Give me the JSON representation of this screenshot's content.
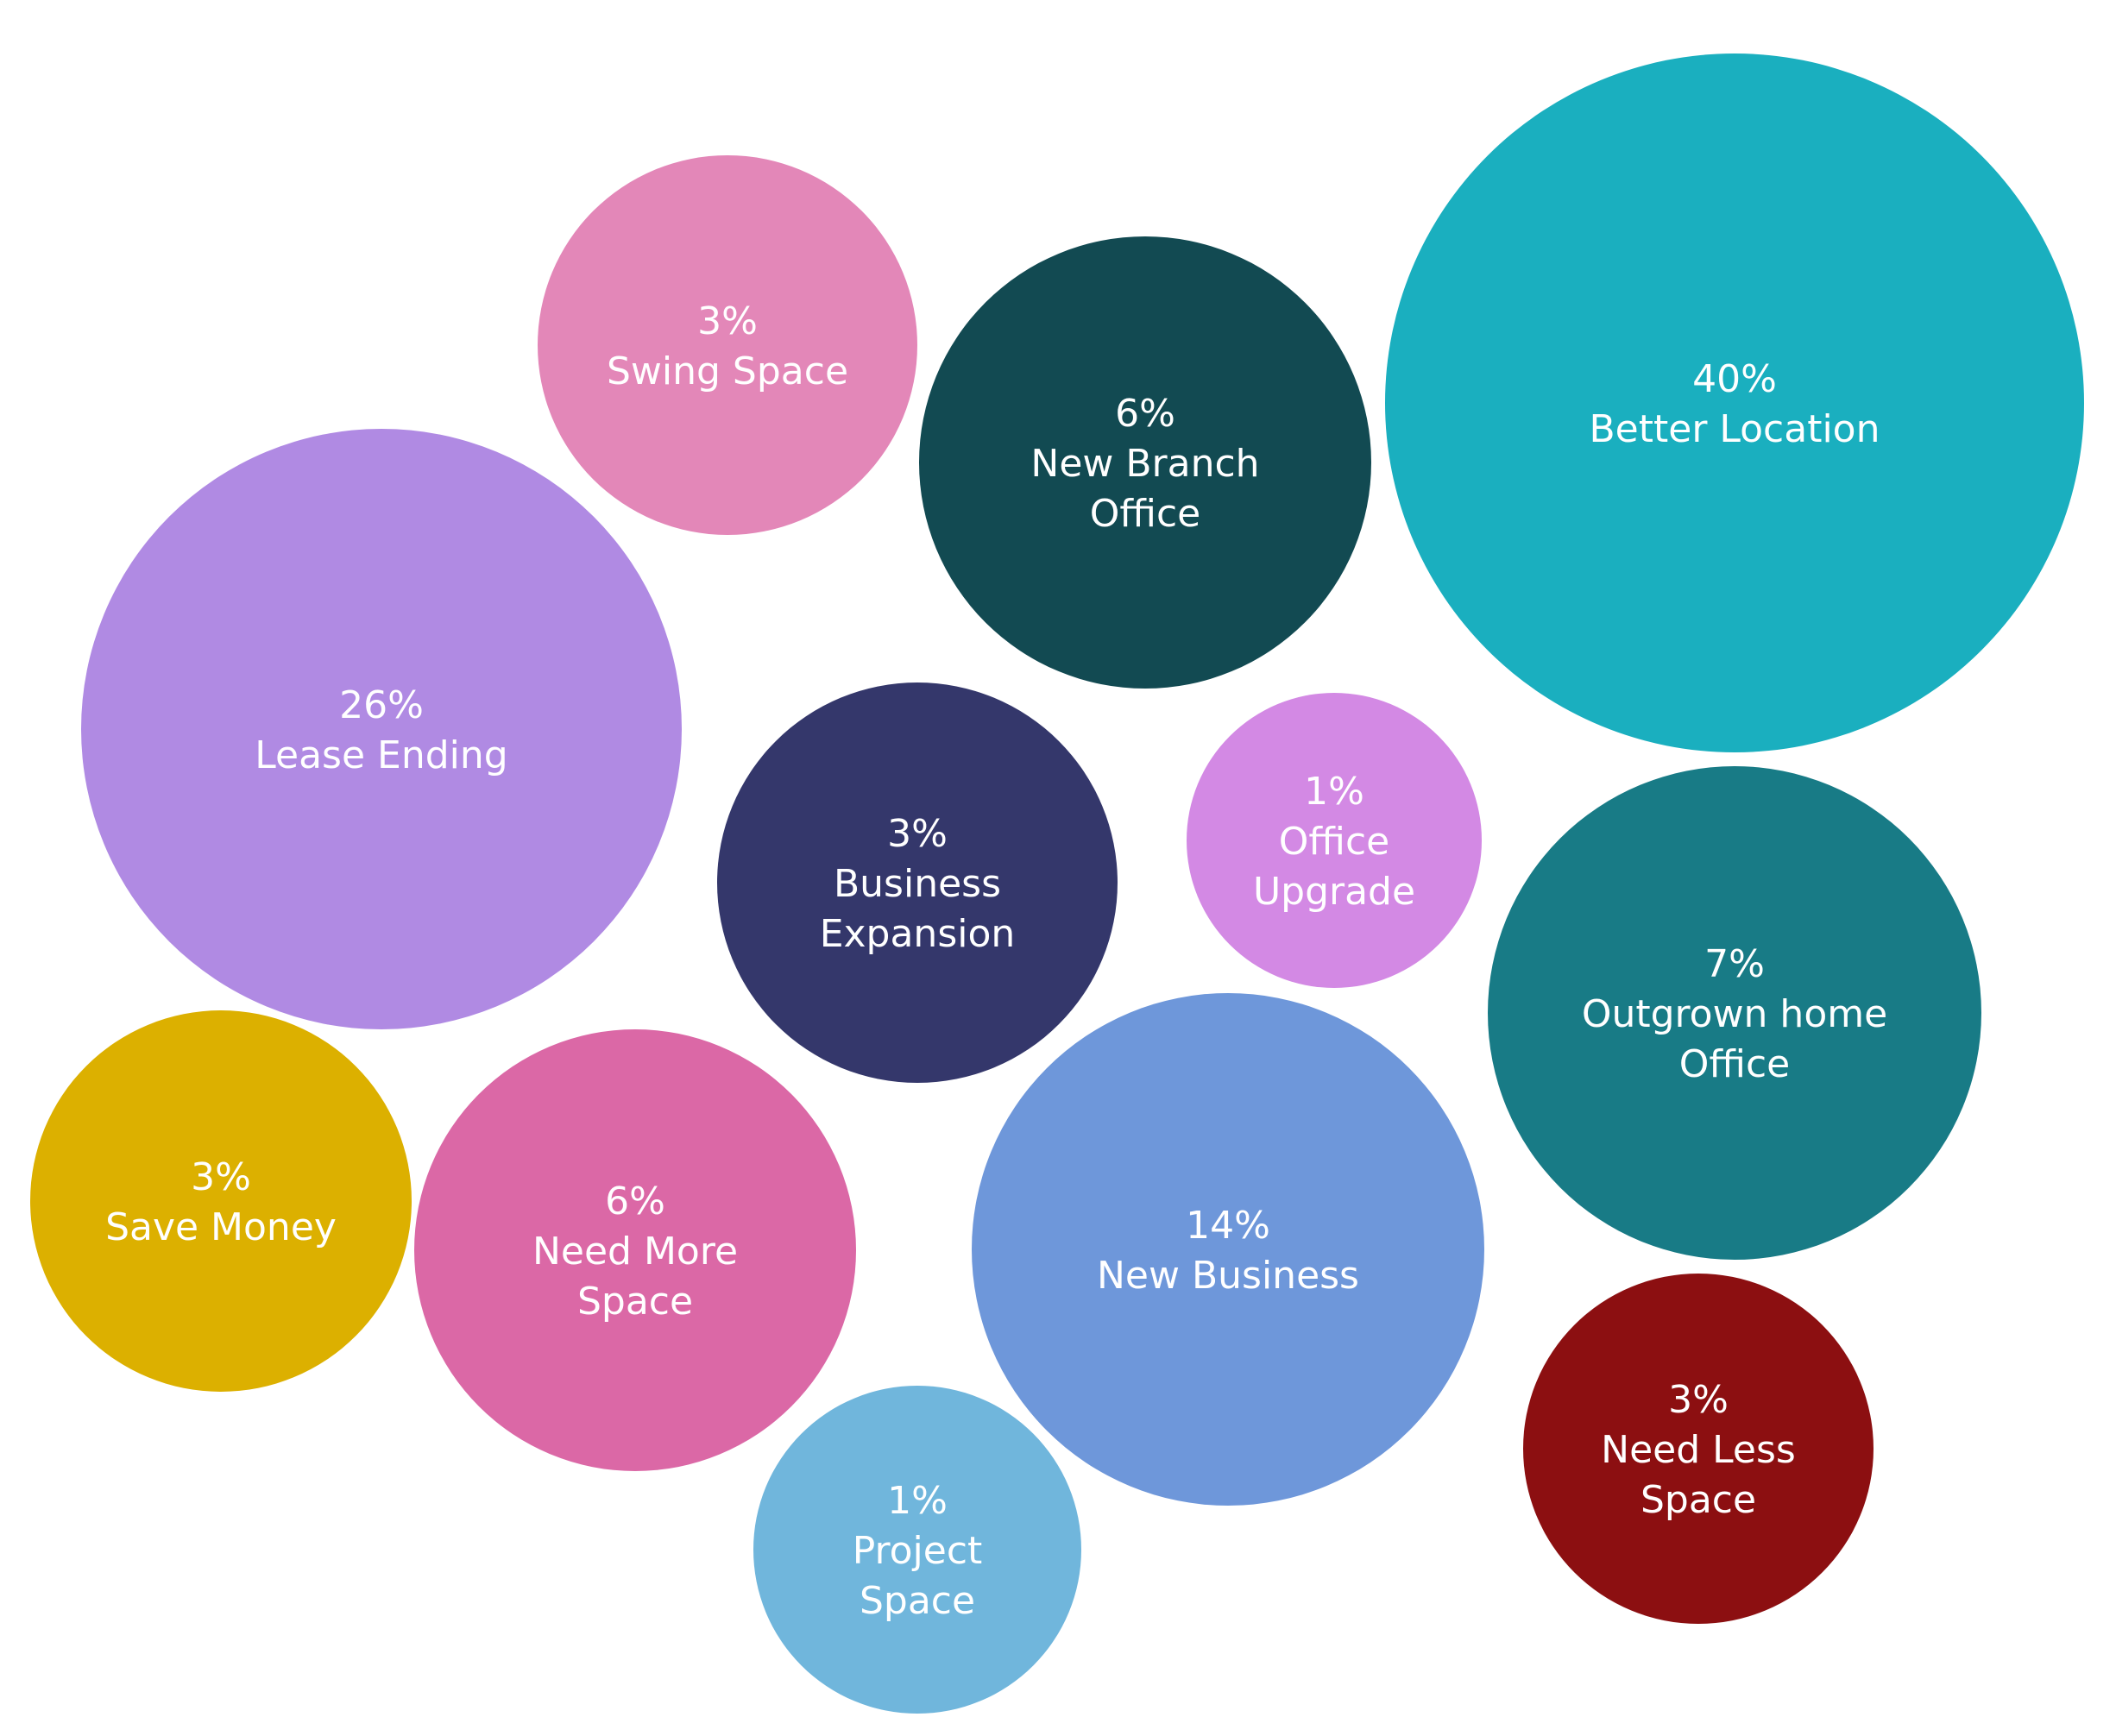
{
  "chart_data": {
    "type": "bubble",
    "unit": "%",
    "series": [
      {
        "name": "Better Location",
        "label_lines": [
          "40%",
          "Better Location"
        ],
        "value": 40,
        "color": "#1aafbf"
      },
      {
        "name": "Lease Ending",
        "label_lines": [
          "26%",
          "Lease Ending"
        ],
        "value": 26,
        "color": "#b08ae3"
      },
      {
        "name": "New Business",
        "label_lines": [
          "14%",
          "New Business"
        ],
        "value": 14,
        "color": "#6e97da"
      },
      {
        "name": "Outgrown home Office",
        "label_lines": [
          "7%",
          "Outgrown home",
          "Office"
        ],
        "value": 7,
        "color": "#187b86"
      },
      {
        "name": "New Branch Office",
        "label_lines": [
          "6%",
          "New Branch",
          "Office"
        ],
        "value": 6,
        "color": "#124a52"
      },
      {
        "name": "Need More Space",
        "label_lines": [
          "6%",
          "Need More",
          "Space"
        ],
        "value": 6,
        "color": "#db68a6"
      },
      {
        "name": "Swing Space",
        "label_lines": [
          "3%",
          "Swing Space"
        ],
        "value": 3,
        "color": "#e387b8"
      },
      {
        "name": "Business Expansion",
        "label_lines": [
          "3%",
          "Business",
          "Expansion"
        ],
        "value": 3,
        "color": "#34376b"
      },
      {
        "name": "Save Money",
        "label_lines": [
          "3%",
          "Save Money"
        ],
        "value": 3,
        "color": "#dcb000"
      },
      {
        "name": "Need Less Space",
        "label_lines": [
          "3%",
          "Need Less",
          "Space"
        ],
        "value": 3,
        "color": "#8c0f11"
      },
      {
        "name": "Office Upgrade",
        "label_lines": [
          "1%",
          "Office",
          "Upgrade"
        ],
        "value": 1,
        "color": "#d389e4"
      },
      {
        "name": "Project Space",
        "label_lines": [
          "1%",
          "Project",
          "Space"
        ],
        "value": 1,
        "color": "#70b6dc"
      }
    ]
  }
}
